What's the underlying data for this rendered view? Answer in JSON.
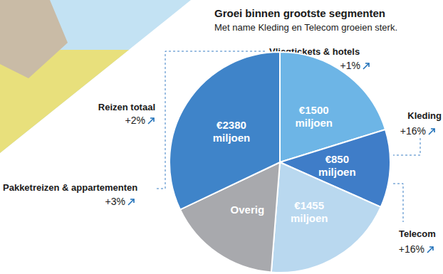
{
  "chart_data": {
    "type": "pie",
    "title": "Groei binnen grootste segmenten",
    "subtitle": "Met name Kleding en Telecom groeien sterk.",
    "categories": [
      "Vliegtickets & hotels",
      "Kleding",
      "Telecom",
      "Overig",
      "Pakketreizen & appartementen"
    ],
    "values": [
      1500,
      850,
      1455,
      1240,
      2380
    ],
    "value_labels": [
      "€1500\nmiljoen",
      "€850\nmiljoen",
      "€1455\nmiljoen",
      null,
      "€2380\nmiljoen"
    ],
    "colors": [
      "#6db5e6",
      "#3f7dc8",
      "#b9d8ef",
      "#a8a9ad",
      "#3f84c9"
    ],
    "data_labels": true,
    "growth": [
      1,
      16,
      16,
      null,
      3
    ],
    "growth_labels": [
      "+1%",
      "+16%",
      "+16%",
      null,
      "+3%"
    ],
    "group_annotation": {
      "text": "Reizen totaal",
      "value": 2,
      "label": "+2%"
    }
  }
}
